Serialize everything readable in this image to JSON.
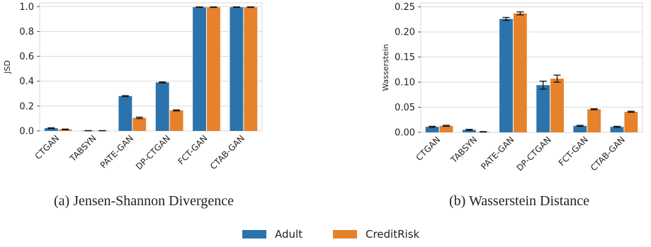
{
  "colors": {
    "adult": "#2c73ab",
    "credit": "#e6822b",
    "grid": "#d9d9d9",
    "axis": "#555555",
    "text": "#222222"
  },
  "legend": {
    "items": [
      {
        "label": "Adult",
        "color": "#2c73ab"
      },
      {
        "label": "CreditRisk",
        "color": "#e6822b"
      }
    ]
  },
  "chart_data": [
    {
      "type": "bar",
      "caption": "(a) Jensen-Shannon Divergence",
      "ylabel": "JSD",
      "ylim": [
        0,
        1.03
      ],
      "yticks": [
        0.0,
        0.2,
        0.4,
        0.6,
        0.8,
        1.0
      ],
      "ytick_labels": [
        "0.0",
        "0.2",
        "0.4",
        "0.6",
        "0.8",
        "1.0"
      ],
      "grid": true,
      "categories": [
        "CTGAN",
        "TABSYN",
        "PATE-GAN",
        "DP-CTGAN",
        "FCT-GAN",
        "CTAB-GAN"
      ],
      "series": [
        {
          "name": "Adult",
          "values": [
            0.022,
            0.002,
            0.28,
            0.39,
            0.995,
            0.995
          ],
          "errors": [
            0.003,
            0.001,
            0.004,
            0.004,
            0.002,
            0.002
          ]
        },
        {
          "name": "CreditRisk",
          "values": [
            0.012,
            0.002,
            0.105,
            0.165,
            0.995,
            0.995
          ],
          "errors": [
            0.003,
            0.001,
            0.006,
            0.004,
            0.002,
            0.002
          ]
        }
      ]
    },
    {
      "type": "bar",
      "caption": "(b) Wasserstein Distance",
      "ylabel": "Wasserstein",
      "ylim": [
        0,
        0.258
      ],
      "yticks": [
        0.0,
        0.05,
        0.1,
        0.15,
        0.2,
        0.25
      ],
      "ytick_labels": [
        "0.00",
        "0.05",
        "0.10",
        "0.15",
        "0.20",
        "0.25"
      ],
      "grid": true,
      "categories": [
        "CTGAN",
        "TABSYN",
        "PATE-GAN",
        "DP-CTGAN",
        "FCT-GAN",
        "CTAB-GAN"
      ],
      "series": [
        {
          "name": "Adult",
          "values": [
            0.011,
            0.005,
            0.226,
            0.094,
            0.013,
            0.011
          ],
          "errors": [
            0.001,
            0.001,
            0.003,
            0.008,
            0.001,
            0.001
          ]
        },
        {
          "name": "CreditRisk",
          "values": [
            0.013,
            0.001,
            0.237,
            0.107,
            0.046,
            0.041
          ],
          "errors": [
            0.001,
            0.0005,
            0.003,
            0.007,
            0.001,
            0.001
          ]
        }
      ]
    }
  ]
}
